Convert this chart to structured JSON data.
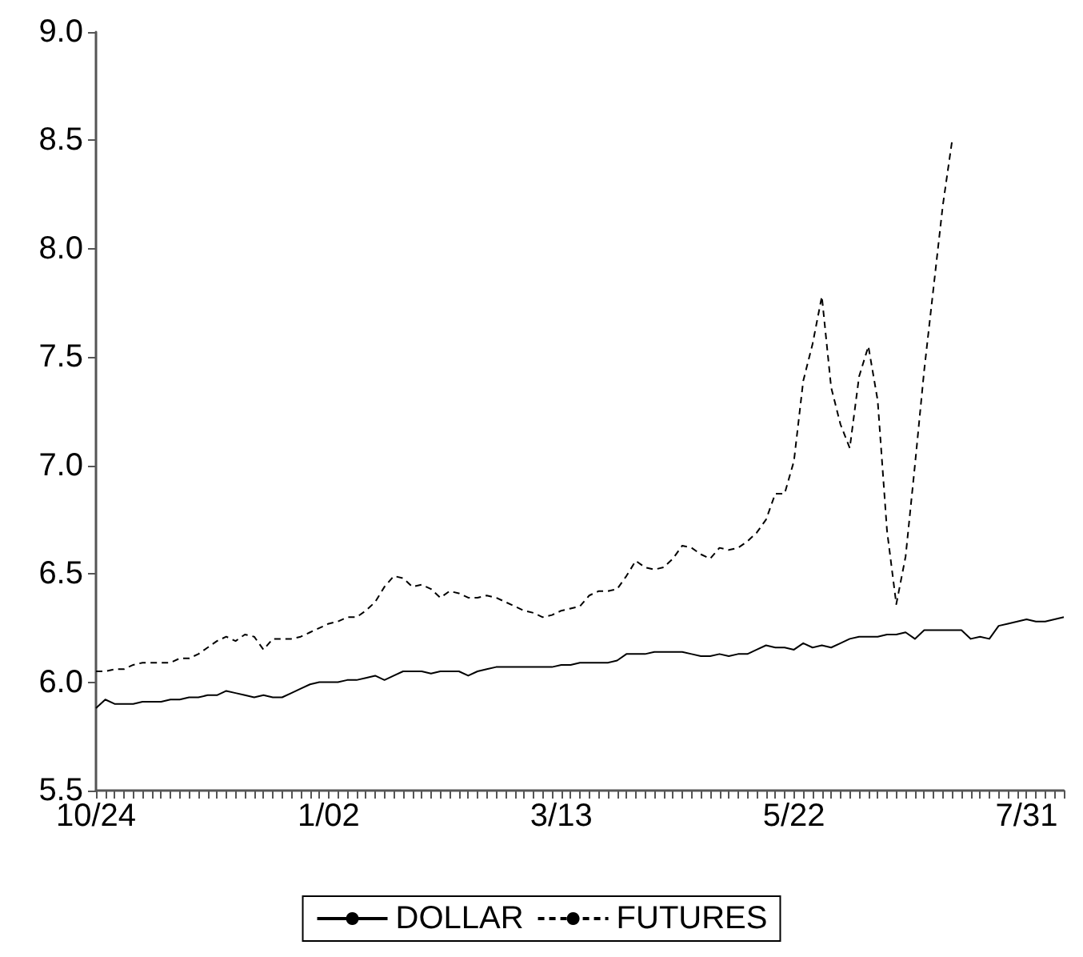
{
  "chart_data": {
    "type": "line",
    "ylim": [
      5.5,
      9.0
    ],
    "yticks": [
      {
        "value": 5.5,
        "label": "5.5"
      },
      {
        "value": 6,
        "label": "6.0"
      },
      {
        "value": 6.5,
        "label": "6.5"
      },
      {
        "value": 7,
        "label": "7.0"
      },
      {
        "value": 7.5,
        "label": "7.5"
      },
      {
        "value": 8,
        "label": "8.0"
      },
      {
        "value": 8.5,
        "label": "8.5"
      },
      {
        "value": 9,
        "label": "9.0"
      }
    ],
    "categories": [
      "10/24",
      null,
      null,
      null,
      null,
      null,
      null,
      null,
      null,
      null,
      null,
      null,
      null,
      null,
      null,
      null,
      null,
      null,
      null,
      null,
      null,
      null,
      null,
      null,
      null,
      "1/02",
      null,
      null,
      null,
      null,
      null,
      null,
      null,
      null,
      null,
      null,
      null,
      null,
      null,
      null,
      null,
      null,
      null,
      null,
      null,
      null,
      null,
      null,
      null,
      null,
      "3/13",
      null,
      null,
      null,
      null,
      null,
      null,
      null,
      null,
      null,
      null,
      null,
      null,
      null,
      null,
      null,
      null,
      null,
      null,
      null,
      null,
      null,
      null,
      null,
      null,
      "5/22",
      null,
      null,
      null,
      null,
      null,
      null,
      null,
      null,
      null,
      null,
      null,
      null,
      null,
      null,
      null,
      null,
      null,
      null,
      null,
      null,
      null,
      null,
      null,
      null,
      "7/31",
      null,
      null,
      null,
      null
    ],
    "grid": false,
    "legend": "bottom",
    "marker": "none",
    "series": [
      {
        "name": "DOLLAR",
        "color": "#000000",
        "line_style": "solid",
        "values": [
          5.88,
          5.92,
          5.9,
          5.9,
          5.9,
          5.91,
          5.91,
          5.91,
          5.92,
          5.92,
          5.93,
          5.93,
          5.94,
          5.94,
          5.96,
          5.95,
          5.94,
          5.93,
          5.94,
          5.93,
          5.93,
          5.95,
          5.97,
          5.99,
          6.0,
          6.0,
          6.0,
          6.01,
          6.01,
          6.02,
          6.03,
          6.01,
          6.03,
          6.05,
          6.05,
          6.05,
          6.04,
          6.05,
          6.05,
          6.05,
          6.03,
          6.05,
          6.06,
          6.07,
          6.07,
          6.07,
          6.07,
          6.07,
          6.07,
          6.07,
          6.08,
          6.08,
          6.09,
          6.09,
          6.09,
          6.09,
          6.1,
          6.13,
          6.13,
          6.13,
          6.14,
          6.14,
          6.14,
          6.14,
          6.13,
          6.12,
          6.12,
          6.13,
          6.12,
          6.13,
          6.13,
          6.15,
          6.17,
          6.16,
          6.16,
          6.15,
          6.18,
          6.16,
          6.17,
          6.16,
          6.18,
          6.2,
          6.21,
          6.21,
          6.21,
          6.22,
          6.22,
          6.23,
          6.2,
          6.24,
          6.24,
          6.24,
          6.24,
          6.24,
          6.2,
          6.21,
          6.2,
          6.26,
          6.27,
          6.28,
          6.29,
          6.28,
          6.28,
          6.29,
          6.3
        ]
      },
      {
        "name": "FUTURES",
        "color": "#000000",
        "line_style": "dashed",
        "values": [
          6.05,
          6.05,
          6.06,
          6.06,
          6.08,
          6.09,
          6.09,
          6.09,
          6.09,
          6.11,
          6.11,
          6.13,
          6.16,
          6.19,
          6.21,
          6.19,
          6.22,
          6.21,
          6.15,
          6.2,
          6.2,
          6.2,
          6.21,
          6.23,
          6.25,
          6.27,
          6.28,
          6.3,
          6.3,
          6.33,
          6.37,
          6.44,
          6.49,
          6.48,
          6.44,
          6.45,
          6.43,
          6.39,
          6.42,
          6.41,
          6.39,
          6.39,
          6.4,
          6.39,
          6.37,
          6.35,
          6.33,
          6.32,
          6.3,
          6.31,
          6.33,
          6.34,
          6.35,
          6.4,
          6.42,
          6.42,
          6.43,
          6.49,
          6.56,
          6.53,
          6.52,
          6.53,
          6.57,
          6.63,
          6.62,
          6.59,
          6.57,
          6.62,
          6.61,
          6.62,
          6.65,
          6.69,
          6.75,
          6.87,
          6.87,
          7.02,
          7.39,
          7.56,
          7.78,
          7.36,
          7.19,
          7.08,
          7.41,
          7.55,
          7.3,
          6.7,
          6.36,
          6.58,
          7.0,
          7.44,
          7.82,
          8.2,
          8.5,
          null,
          null,
          null,
          null,
          null,
          null,
          null,
          null,
          null,
          null,
          null,
          null
        ]
      }
    ]
  }
}
